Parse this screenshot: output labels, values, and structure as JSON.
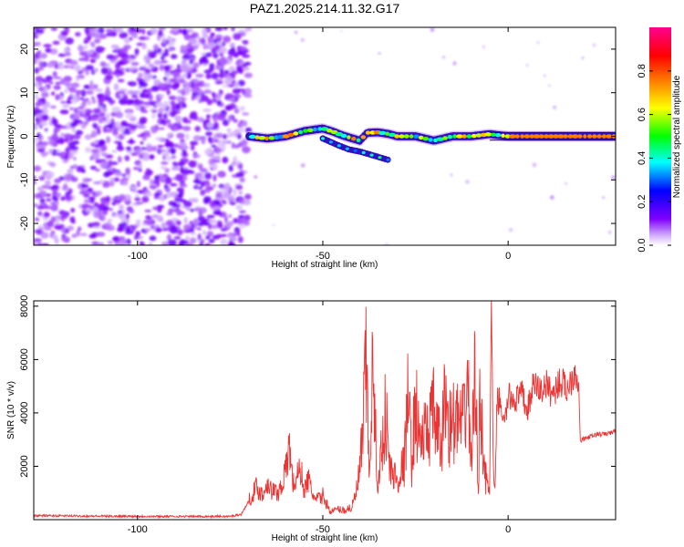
{
  "title": "PAZ1.2025.214.11.32.G17",
  "chart_data": [
    {
      "type": "heatmap",
      "xlabel": "Height of straight line (km)",
      "ylabel": "Frequency (Hz)",
      "xlim": [
        -128,
        29
      ],
      "ylim": [
        -25,
        25
      ],
      "xticks": [
        -100,
        -50,
        0
      ],
      "yticks": [
        -20,
        -10,
        0,
        10,
        20
      ],
      "colorbar": {
        "label": "Normalized spectral amplitude",
        "range": [
          0,
          1
        ],
        "ticks": [
          "0.0",
          "0.2",
          "0.4",
          "0.6",
          "0.8"
        ],
        "colors": [
          "#ffffff",
          "#8000ff",
          "#0000ff",
          "#00ffff",
          "#00ff00",
          "#ffff00",
          "#ff8000",
          "#ff0000",
          "#ff0080"
        ]
      },
      "noise_region": {
        "x": [
          -128,
          -70
        ],
        "y": [
          -25,
          25
        ],
        "amplitude": [
          0.05,
          0.25
        ]
      },
      "signal_ridge": {
        "x": [
          -70,
          -65,
          -60,
          -55,
          -50,
          -47,
          -45,
          -42,
          -40,
          -38,
          -35,
          -32,
          -30,
          -25,
          -20,
          -15,
          -10,
          -5,
          0,
          5,
          10,
          15,
          20,
          29
        ],
        "y": [
          0,
          -0.5,
          0,
          1.2,
          1.8,
          1.0,
          0.3,
          -0.5,
          -1.0,
          0.8,
          0.9,
          0.5,
          0,
          0,
          -1.0,
          0,
          0,
          0.5,
          0,
          0,
          0,
          0,
          0,
          0
        ]
      },
      "secondary_ridge": {
        "x": [
          -50,
          -46,
          -43,
          -40,
          -36,
          -32
        ],
        "y": [
          -0.5,
          -2.0,
          -3.0,
          -3.5,
          -4.5,
          -5.5
        ]
      }
    },
    {
      "type": "line",
      "xlabel": "Height of straight line (km)",
      "ylabel": "SNR (10 * v/v)",
      "xlim": [
        -128,
        29
      ],
      "ylim": [
        0,
        8200
      ],
      "xticks": [
        -100,
        -50,
        0
      ],
      "yticks": [
        2000,
        4000,
        6000,
        8000
      ],
      "color": "#ee3333",
      "series": [
        {
          "x": [
            -128,
            -110,
            -90,
            -75,
            -72,
            -70,
            -68,
            -66,
            -65,
            -64,
            -62,
            -60,
            -59,
            -58,
            -56,
            -55,
            -54,
            -52,
            -50,
            -48,
            -46,
            -44,
            -42,
            -41,
            -40,
            -39,
            -38.5,
            -38,
            -37.5,
            -37,
            -36.5,
            -36,
            -35,
            -34,
            -33,
            -32,
            -30,
            -28,
            -27,
            -26,
            -25,
            -24,
            -22,
            -20,
            -19,
            -18,
            -17,
            -16,
            -14,
            -12,
            -11,
            -10,
            -9,
            -8,
            -7.5,
            -7,
            -6,
            -5,
            -4.5,
            -4,
            -3.5,
            -3,
            -2,
            -1,
            0,
            2,
            4,
            5,
            7,
            9,
            10,
            12,
            14,
            16,
            18,
            19,
            19.5,
            20,
            22,
            24,
            26,
            29
          ],
          "y": [
            150,
            130,
            120,
            120,
            200,
            700,
            1200,
            900,
            1500,
            1100,
            1000,
            1800,
            2800,
            1300,
            1900,
            1100,
            1500,
            700,
            900,
            300,
            400,
            350,
            500,
            1000,
            1800,
            3700,
            5700,
            5200,
            1100,
            4300,
            5500,
            3500,
            1200,
            3000,
            4100,
            1900,
            1500,
            2100,
            4700,
            2200,
            4400,
            3000,
            3200,
            4000,
            3200,
            2600,
            4800,
            3500,
            3700,
            3500,
            5400,
            2200,
            5200,
            1500,
            5000,
            3200,
            1500,
            1000,
            8200,
            1800,
            1000,
            4500,
            4400,
            3500,
            4600,
            4500,
            4700,
            4000,
            5100,
            4800,
            5100,
            4700,
            5200,
            4900,
            5600,
            5200,
            2900,
            3000,
            3100,
            3200,
            3200,
            3300
          ]
        }
      ]
    }
  ]
}
